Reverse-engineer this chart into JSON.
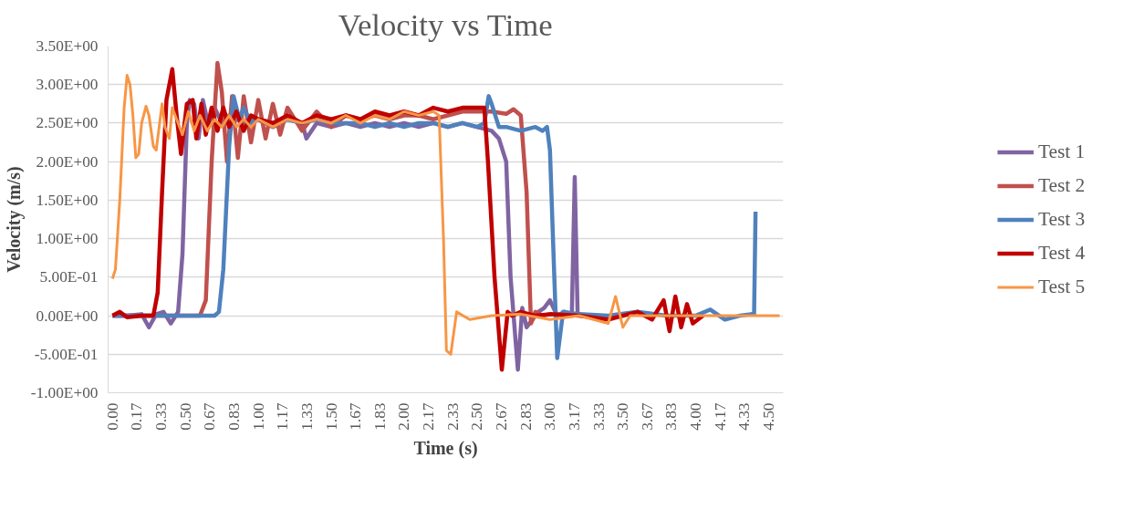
{
  "chart_data": {
    "type": "line",
    "title": "Velocity vs Time",
    "xlabel": "Time (s)",
    "ylabel": "Velocity (m/s)",
    "xlim": [
      -0.03,
      4.6
    ],
    "ylim": [
      -1,
      3.5
    ],
    "xticks": [
      {
        "value": 0,
        "label": "0.00"
      },
      {
        "value": 0.1667,
        "label": "0.17"
      },
      {
        "value": 0.3333,
        "label": "0.33"
      },
      {
        "value": 0.5,
        "label": "0.50"
      },
      {
        "value": 0.6667,
        "label": "0.67"
      },
      {
        "value": 0.8333,
        "label": "0.83"
      },
      {
        "value": 1,
        "label": "1.00"
      },
      {
        "value": 1.1667,
        "label": "1.17"
      },
      {
        "value": 1.3333,
        "label": "1.33"
      },
      {
        "value": 1.5,
        "label": "1.50"
      },
      {
        "value": 1.6667,
        "label": "1.67"
      },
      {
        "value": 1.8333,
        "label": "1.83"
      },
      {
        "value": 2,
        "label": "2.00"
      },
      {
        "value": 2.1667,
        "label": "2.17"
      },
      {
        "value": 2.3333,
        "label": "2.33"
      },
      {
        "value": 2.5,
        "label": "2.50"
      },
      {
        "value": 2.6667,
        "label": "2.67"
      },
      {
        "value": 2.8333,
        "label": "2.83"
      },
      {
        "value": 3,
        "label": "3.00"
      },
      {
        "value": 3.1667,
        "label": "3.17"
      },
      {
        "value": 3.3333,
        "label": "3.33"
      },
      {
        "value": 3.5,
        "label": "3.50"
      },
      {
        "value": 3.6667,
        "label": "3.67"
      },
      {
        "value": 3.8333,
        "label": "3.83"
      },
      {
        "value": 4,
        "label": "4.00"
      },
      {
        "value": 4.1667,
        "label": "4.17"
      },
      {
        "value": 4.3333,
        "label": "4.33"
      },
      {
        "value": 4.5,
        "label": "4.50"
      }
    ],
    "yticks": [
      {
        "value": -1,
        "label": "-1.00E+00"
      },
      {
        "value": -0.5,
        "label": "-5.00E-01"
      },
      {
        "value": 0,
        "label": "0.00E+00"
      },
      {
        "value": 0.5,
        "label": "5.00E-01"
      },
      {
        "value": 1,
        "label": "1.00E+00"
      },
      {
        "value": 1.5,
        "label": "1.50E+00"
      },
      {
        "value": 2,
        "label": "2.00E+00"
      },
      {
        "value": 2.5,
        "label": "2.50E+00"
      },
      {
        "value": 3,
        "label": "3.00E+00"
      },
      {
        "value": 3.5,
        "label": "3.50E+00"
      }
    ],
    "grid": "y",
    "legend": "right",
    "marker": "none",
    "line_style": "solid",
    "series": [
      {
        "name": "Test 1",
        "color": "#8064a2",
        "x": [
          0,
          0.1,
          0.2,
          0.25,
          0.3,
          0.35,
          0.4,
          0.45,
          0.48,
          0.51,
          0.53,
          0.56,
          0.59,
          0.62,
          0.66,
          0.7,
          0.75,
          0.8,
          0.9,
          1.0,
          1.1,
          1.2,
          1.3,
          1.33,
          1.4,
          1.5,
          1.6,
          1.7,
          1.8,
          1.9,
          2.0,
          2.1,
          2.2,
          2.3,
          2.4,
          2.5,
          2.6,
          2.65,
          2.7,
          2.73,
          2.78,
          2.81,
          2.84,
          2.88,
          2.92,
          2.96,
          3.0,
          3.05,
          3.1,
          3.15,
          3.17,
          3.19
        ],
        "values": [
          0,
          0,
          0.02,
          -0.15,
          0.02,
          0.05,
          -0.1,
          0.05,
          0.8,
          2.5,
          2.8,
          2.75,
          2.3,
          2.8,
          2.45,
          2.7,
          2.5,
          2.6,
          2.5,
          2.55,
          2.45,
          2.55,
          2.5,
          2.3,
          2.5,
          2.45,
          2.5,
          2.45,
          2.5,
          2.45,
          2.5,
          2.45,
          2.5,
          2.45,
          2.5,
          2.45,
          2.4,
          2.3,
          2.0,
          0.5,
          -0.7,
          0.1,
          -0.15,
          -0.05,
          0.05,
          0.1,
          0.2,
          0,
          0.05,
          0,
          1.8,
          0
        ]
      },
      {
        "name": "Test 2",
        "color": "#c0504d",
        "x": [
          0,
          0.2,
          0.4,
          0.6,
          0.64,
          0.68,
          0.72,
          0.75,
          0.785,
          0.82,
          0.86,
          0.9,
          0.95,
          1.0,
          1.05,
          1.1,
          1.15,
          1.2,
          1.3,
          1.4,
          1.5,
          1.6,
          1.7,
          1.8,
          1.9,
          2.0,
          2.1,
          2.2,
          2.3,
          2.4,
          2.5,
          2.6,
          2.7,
          2.75,
          2.8,
          2.84,
          2.87,
          2.9,
          2.95,
          3.0
        ],
        "values": [
          0,
          0,
          0,
          0,
          0.2,
          2.0,
          3.28,
          2.9,
          2.0,
          2.85,
          2.05,
          2.85,
          2.25,
          2.8,
          2.3,
          2.75,
          2.35,
          2.7,
          2.4,
          2.65,
          2.45,
          2.6,
          2.55,
          2.6,
          2.55,
          2.6,
          2.6,
          2.55,
          2.6,
          2.65,
          2.65,
          2.65,
          2.62,
          2.68,
          2.6,
          1.6,
          -0.1,
          0.05,
          0,
          0.02
        ]
      },
      {
        "name": "Test 3",
        "color": "#4f81bd",
        "x": [
          0,
          0.3,
          0.5,
          0.7,
          0.73,
          0.76,
          0.8,
          0.83,
          0.87,
          0.9,
          0.95,
          1.0,
          1.1,
          1.2,
          1.3,
          1.4,
          1.5,
          1.6,
          1.7,
          1.8,
          1.9,
          2.0,
          2.1,
          2.2,
          2.3,
          2.4,
          2.5,
          2.55,
          2.58,
          2.6,
          2.65,
          2.7,
          2.8,
          2.9,
          2.95,
          2.98,
          3.0,
          3.03,
          3.05,
          3.09,
          3.2,
          3.4,
          3.6,
          3.8,
          4.0,
          4.1,
          4.2,
          4.3,
          4.38,
          4.4,
          4.41
        ],
        "values": [
          0,
          0,
          0,
          0,
          0.05,
          0.6,
          2.2,
          2.85,
          2.55,
          2.7,
          2.5,
          2.55,
          2.5,
          2.55,
          2.5,
          2.55,
          2.5,
          2.5,
          2.5,
          2.45,
          2.5,
          2.45,
          2.5,
          2.5,
          2.45,
          2.5,
          2.45,
          2.5,
          2.85,
          2.75,
          2.45,
          2.45,
          2.4,
          2.45,
          2.4,
          2.45,
          2.15,
          0.5,
          -0.55,
          0.05,
          0.02,
          0,
          0.05,
          0,
          0,
          0.08,
          -0.05,
          0,
          0.02,
          0.02,
          1.35
        ]
      },
      {
        "name": "Test 4",
        "color": "#c00000",
        "x": [
          0,
          0.05,
          0.1,
          0.2,
          0.28,
          0.31,
          0.34,
          0.37,
          0.41,
          0.44,
          0.47,
          0.51,
          0.55,
          0.575,
          0.61,
          0.64,
          0.68,
          0.72,
          0.76,
          0.8,
          0.85,
          0.9,
          0.95,
          1.0,
          1.1,
          1.2,
          1.3,
          1.4,
          1.5,
          1.6,
          1.7,
          1.8,
          1.9,
          2.0,
          2.1,
          2.2,
          2.3,
          2.4,
          2.5,
          2.55,
          2.575,
          2.62,
          2.67,
          2.71,
          2.74,
          2.8,
          2.9,
          3.0,
          3.2,
          3.4,
          3.6,
          3.7,
          3.78,
          3.82,
          3.86,
          3.9,
          3.94,
          3.98,
          4.05
        ],
        "values": [
          0,
          0.05,
          -0.02,
          0,
          0,
          0.3,
          1.6,
          2.8,
          3.2,
          2.6,
          2.1,
          2.75,
          2.8,
          2.3,
          2.75,
          2.35,
          2.7,
          2.4,
          2.7,
          2.45,
          2.65,
          2.4,
          2.6,
          2.55,
          2.5,
          2.6,
          2.5,
          2.6,
          2.55,
          2.6,
          2.55,
          2.65,
          2.6,
          2.65,
          2.6,
          2.7,
          2.65,
          2.7,
          2.7,
          2.7,
          2.0,
          0.5,
          -0.7,
          0.05,
          0,
          0.05,
          0,
          0.02,
          0,
          -0.05,
          0.05,
          -0.05,
          0.2,
          -0.2,
          0.25,
          -0.15,
          0.15,
          -0.1,
          0
        ]
      },
      {
        "name": "Test 5",
        "color": "#f79646",
        "x": [
          0,
          0.02,
          0.05,
          0.08,
          0.1,
          0.12,
          0.14,
          0.16,
          0.18,
          0.2,
          0.23,
          0.25,
          0.28,
          0.3,
          0.32,
          0.34,
          0.36,
          0.39,
          0.41,
          0.44,
          0.48,
          0.52,
          0.56,
          0.6,
          0.65,
          0.7,
          0.75,
          0.8,
          0.85,
          0.9,
          0.95,
          1.0,
          1.1,
          1.2,
          1.3,
          1.4,
          1.5,
          1.6,
          1.7,
          1.8,
          1.9,
          2.0,
          2.1,
          2.2,
          2.24,
          2.27,
          2.29,
          2.32,
          2.36,
          2.45,
          2.6,
          2.8,
          3.0,
          3.2,
          3.4,
          3.45,
          3.5,
          3.55,
          3.7,
          3.9,
          4.1,
          4.3,
          4.575
        ],
        "values": [
          0.48,
          0.6,
          1.5,
          2.7,
          3.12,
          3.0,
          2.6,
          2.05,
          2.1,
          2.5,
          2.72,
          2.6,
          2.2,
          2.15,
          2.45,
          2.75,
          2.45,
          2.3,
          2.7,
          2.55,
          2.35,
          2.65,
          2.4,
          2.6,
          2.4,
          2.55,
          2.45,
          2.6,
          2.45,
          2.55,
          2.45,
          2.55,
          2.45,
          2.55,
          2.5,
          2.55,
          2.5,
          2.6,
          2.5,
          2.6,
          2.55,
          2.65,
          2.6,
          2.65,
          2.6,
          1.0,
          -0.45,
          -0.5,
          0.05,
          -0.05,
          0,
          0.02,
          -0.05,
          0,
          -0.1,
          0.25,
          -0.15,
          0,
          0,
          0,
          0,
          0,
          0
        ]
      }
    ]
  }
}
